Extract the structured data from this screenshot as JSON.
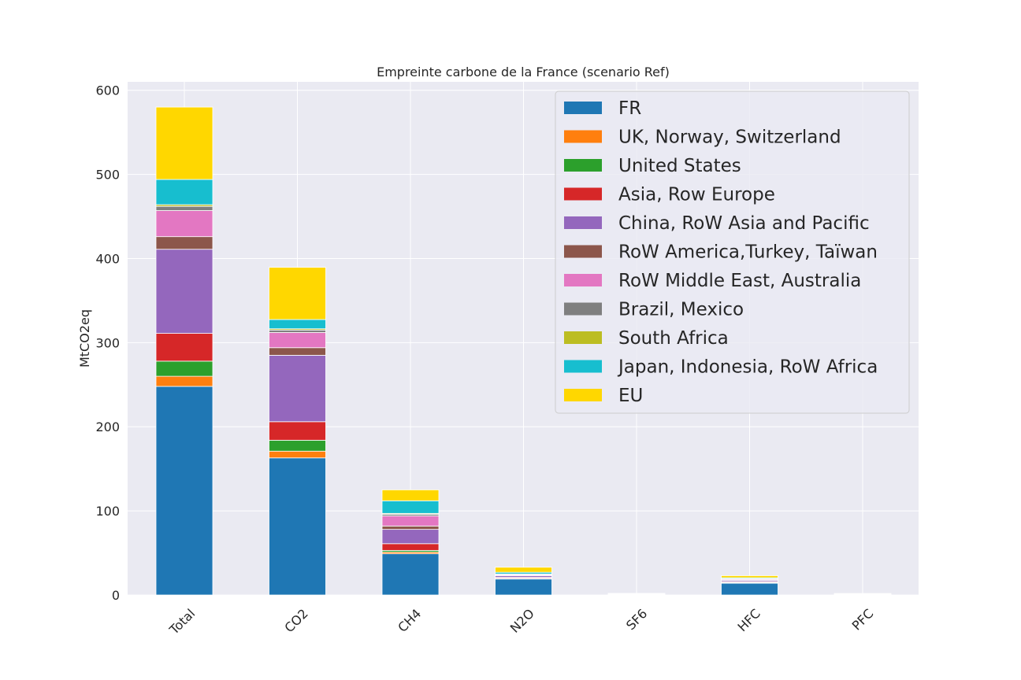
{
  "chart_data": {
    "type": "bar",
    "stacked": true,
    "title": "Empreinte carbone de la France (scenario Ref)",
    "xlabel": "",
    "ylabel": "MtCO2eq",
    "ylim": [
      0,
      610
    ],
    "yticks": [
      0,
      100,
      200,
      300,
      400,
      500,
      600
    ],
    "grid": true,
    "legend_position": "top-right",
    "categories": [
      "Total",
      "CO2",
      "CH4",
      "N2O",
      "SF6",
      "HFC",
      "PFC"
    ],
    "series": [
      {
        "name": "FR",
        "color": "#1f77b4",
        "values": [
          248,
          163,
          49,
          19,
          0.4,
          14,
          0.3
        ]
      },
      {
        "name": "UK, Norway, Switzerland",
        "color": "#ff7f0e",
        "values": [
          12,
          8,
          2,
          0.5,
          0.1,
          0.5,
          0.1
        ]
      },
      {
        "name": "United States",
        "color": "#2ca02c",
        "values": [
          18,
          13,
          2,
          0.5,
          0.1,
          0.5,
          0.1
        ]
      },
      {
        "name": "Asia, Row Europe",
        "color": "#d62728",
        "values": [
          33,
          22,
          8,
          1,
          0.1,
          1,
          0.1
        ]
      },
      {
        "name": "China, RoW Asia and Pacific",
        "color": "#9467bd",
        "values": [
          100,
          79,
          17,
          2,
          0.3,
          1.5,
          0.2
        ]
      },
      {
        "name": "RoW America,Turkey, Taïwan",
        "color": "#8c564b",
        "values": [
          15,
          9,
          4,
          0.5,
          0.1,
          0.5,
          0.1
        ]
      },
      {
        "name": "RoW Middle East, Australia",
        "color": "#e377c2",
        "values": [
          31,
          18,
          12,
          1,
          0.1,
          1,
          0.1
        ]
      },
      {
        "name": "Brazil, Mexico",
        "color": "#7f7f7f",
        "values": [
          5,
          3,
          2,
          0.3,
          0.05,
          0.3,
          0.05
        ]
      },
      {
        "name": "South Africa",
        "color": "#bcbd22",
        "values": [
          2,
          1.5,
          1,
          0.2,
          0.05,
          0.2,
          0.05
        ]
      },
      {
        "name": "Japan, Indonesia, RoW Africa",
        "color": "#17becf",
        "values": [
          30,
          11,
          15,
          2,
          0.2,
          1,
          0.2
        ]
      },
      {
        "name": "EU",
        "color": "#ffd700",
        "values": [
          86,
          62,
          13,
          6,
          0.5,
          2.5,
          0.5
        ]
      }
    ]
  }
}
